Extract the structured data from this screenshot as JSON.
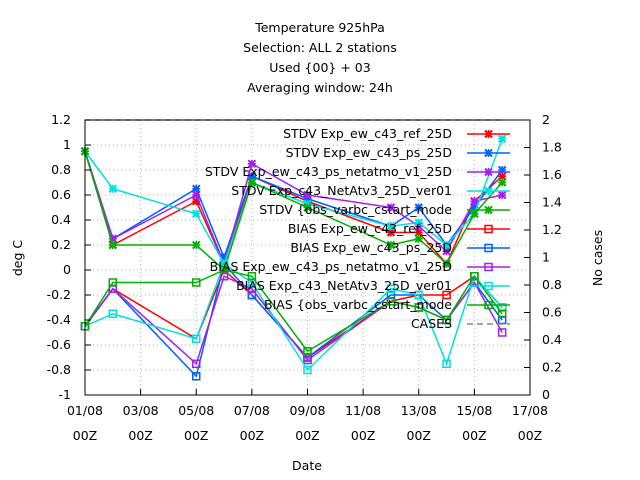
{
  "chart_data": {
    "type": "line",
    "title_lines": [
      "Temperature 925hPa",
      "Selection: ALL       2 stations",
      "Used {00} + 03",
      "Averaging window: 24h"
    ],
    "xlabel": "Date",
    "ylabel": "deg C",
    "y2label": "No cases",
    "xlim": [
      "2017-08-01",
      "2017-08-17"
    ],
    "ylim": [
      -1,
      1.2
    ],
    "y2lim": [
      0,
      2
    ],
    "x_ticks": [
      {
        "date": "2017-08-01",
        "line1": "01/08",
        "line2": "00Z"
      },
      {
        "date": "2017-08-03",
        "line1": "03/08",
        "line2": "00Z"
      },
      {
        "date": "2017-08-05",
        "line1": "05/08",
        "line2": "00Z"
      },
      {
        "date": "2017-08-07",
        "line1": "07/08",
        "line2": "00Z"
      },
      {
        "date": "2017-08-09",
        "line1": "09/08",
        "line2": "00Z"
      },
      {
        "date": "2017-08-11",
        "line1": "11/08",
        "line2": "00Z"
      },
      {
        "date": "2017-08-13",
        "line1": "13/08",
        "line2": "00Z"
      },
      {
        "date": "2017-08-15",
        "line1": "15/08",
        "line2": "00Z"
      },
      {
        "date": "2017-08-17",
        "line1": "17/08",
        "line2": "00Z"
      }
    ],
    "y_ticks": [
      "1.2",
      "1",
      "0.8",
      "0.6",
      "0.4",
      "0.2",
      "0",
      "-0.2",
      "-0.4",
      "-0.6",
      "-0.8",
      "-1"
    ],
    "y2_ticks": [
      "2",
      "1.8",
      "1.6",
      "1.4",
      "1.2",
      "1",
      "0.8",
      "0.6",
      "0.4",
      "0.2",
      "0"
    ],
    "x": [
      "2017-08-01",
      "2017-08-02",
      "2017-08-05",
      "2017-08-06",
      "2017-08-07",
      "2017-08-09",
      "2017-08-12",
      "2017-08-13",
      "2017-08-14",
      "2017-08-15",
      "2017-08-16"
    ],
    "grid": true,
    "legend_position": "top-right inside",
    "series": [
      {
        "name": "STDV Exp_ew_c43_ref_25D",
        "color": "#ff0000",
        "marker": "x",
        "axis": "y1",
        "values": [
          0.95,
          0.2,
          0.55,
          0.05,
          0.75,
          0.55,
          0.3,
          0.3,
          0.05,
          0.55,
          0.75
        ]
      },
      {
        "name": "STDV Exp_ew_c43_ps_25D",
        "color": "#0060ff",
        "marker": "x",
        "axis": "y1",
        "values": [
          0.95,
          0.25,
          0.65,
          0.1,
          0.75,
          0.57,
          0.35,
          0.5,
          0.2,
          0.5,
          0.8
        ]
      },
      {
        "name": "STDV Exp_ew_c43_ps_netatmo_v1_25D",
        "color": "#a020f0",
        "marker": "x",
        "axis": "y1",
        "values": [
          0.95,
          0.25,
          0.6,
          0.05,
          0.85,
          0.6,
          0.5,
          0.35,
          0.15,
          0.55,
          0.6
        ]
      },
      {
        "name": "STDV Exp_c43_NetAtv3_25D_ver01",
        "color": "#00e0e0",
        "marker": "x",
        "axis": "y1",
        "values": [
          0.95,
          0.65,
          0.45,
          0.05,
          0.7,
          0.53,
          0.35,
          0.38,
          0.2,
          0.45,
          1.05
        ]
      },
      {
        "name": "STDV {obs_varbc_cstart_mode",
        "color": "#00b000",
        "marker": "x",
        "axis": "y1",
        "values": [
          0.95,
          0.2,
          0.2,
          0.0,
          0.7,
          0.5,
          0.2,
          0.25,
          0.05,
          0.45,
          0.7
        ]
      },
      {
        "name": "BIAS Exp_ew_c43_ref_25D",
        "color": "#ff0000",
        "marker": "square",
        "axis": "y1",
        "values": [
          -0.45,
          -0.15,
          -0.55,
          0.0,
          -0.2,
          -0.7,
          -0.25,
          -0.2,
          -0.2,
          -0.05,
          -0.3
        ]
      },
      {
        "name": "BIAS Exp_ew_c43_ps_25D",
        "color": "#0060ff",
        "marker": "square",
        "axis": "y1",
        "values": [
          -0.45,
          -0.15,
          -0.85,
          0.05,
          -0.2,
          -0.7,
          -0.2,
          -0.2,
          -0.4,
          -0.1,
          -0.4
        ]
      },
      {
        "name": "BIAS Exp_ew_c43_ps_netatmo_v1_25D",
        "color": "#a020f0",
        "marker": "square",
        "axis": "y1",
        "values": [
          -0.45,
          -0.15,
          -0.75,
          -0.05,
          -0.15,
          -0.72,
          -0.25,
          -0.3,
          -0.4,
          -0.1,
          -0.5
        ]
      },
      {
        "name": "BIAS Exp_c43_NetAtv3_25D_ver01",
        "color": "#00e0e0",
        "marker": "square",
        "axis": "y1",
        "values": [
          -0.45,
          -0.35,
          -0.55,
          0.05,
          -0.1,
          -0.8,
          -0.15,
          -0.2,
          -0.75,
          -0.05,
          -0.3
        ]
      },
      {
        "name": "BIAS {obs_varbc_cstart_mode",
        "color": "#00b000",
        "marker": "square",
        "axis": "y1",
        "values": [
          -0.45,
          -0.1,
          -0.1,
          0.0,
          -0.05,
          -0.65,
          -0.25,
          -0.3,
          -0.4,
          -0.05,
          -0.35
        ]
      },
      {
        "name": "CASES",
        "color": "#888888",
        "marker": "none",
        "axis": "y2",
        "values": [
          2,
          2,
          2,
          2,
          2,
          2,
          2,
          2,
          2,
          2,
          2
        ]
      }
    ]
  }
}
